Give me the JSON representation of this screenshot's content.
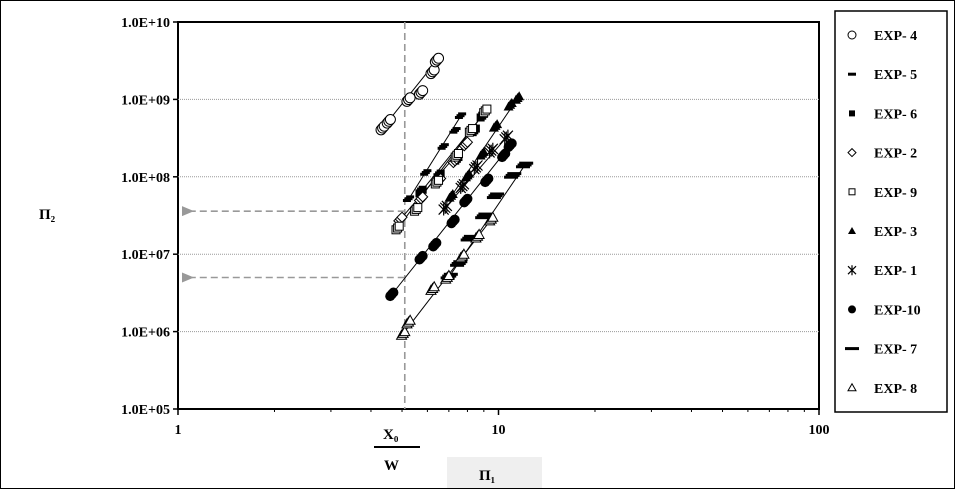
{
  "chart_data": {
    "type": "scatter",
    "x_scale": "log",
    "y_scale": "log",
    "xlim": [
      1,
      100
    ],
    "ylim": [
      100000,
      10000000000
    ],
    "x_ticks": [
      {
        "value": 1,
        "label": "1"
      },
      {
        "value": 10,
        "label": "10"
      },
      {
        "value": 100,
        "label": "100"
      }
    ],
    "y_ticks": [
      {
        "value": 100000,
        "label": "1.0E+05"
      },
      {
        "value": 1000000,
        "label": "1.0E+06"
      },
      {
        "value": 10000000,
        "label": "1.0E+07"
      },
      {
        "value": 100000000,
        "label": "1.0E+08"
      },
      {
        "value": 1000000000,
        "label": "1.0E+09"
      },
      {
        "value": 10000000000,
        "label": "1.0E+10"
      }
    ],
    "ylabel": "Π₂",
    "xlabel": "Π₁",
    "annotation": {
      "numerator": "X₀",
      "denominator": "W"
    },
    "grid": true,
    "legend_position": "right",
    "series": [
      {
        "name": "EXP- 4",
        "marker": "circle-open",
        "points": [
          [
            4.4,
            450000000
          ],
          [
            4.6,
            550000000
          ],
          [
            5.3,
            1050000000
          ],
          [
            5.8,
            1300000000
          ],
          [
            6.3,
            2400000000
          ],
          [
            6.5,
            3400000000
          ]
        ]
      },
      {
        "name": "EXP- 5",
        "marker": "dash",
        "points": [
          [
            5.3,
            55000000
          ],
          [
            6.0,
            120000000
          ],
          [
            6.8,
            260000000
          ],
          [
            7.4,
            420000000
          ],
          [
            7.7,
            650000000
          ]
        ]
      },
      {
        "name": "EXP- 6",
        "marker": "square-filled",
        "points": [
          [
            5.8,
            68000000
          ],
          [
            6.6,
            110000000
          ],
          [
            7.5,
            180000000
          ],
          [
            8.5,
            420000000
          ],
          [
            9.0,
            650000000
          ]
        ]
      },
      {
        "name": "EXP- 2",
        "marker": "diamond-open",
        "points": [
          [
            5.0,
            30000000
          ],
          [
            5.8,
            55000000
          ],
          [
            6.6,
            95000000
          ],
          [
            7.4,
            170000000
          ],
          [
            8.0,
            280000000
          ]
        ]
      },
      {
        "name": "EXP- 9",
        "marker": "square-open",
        "points": [
          [
            4.9,
            23000000
          ],
          [
            5.6,
            40000000
          ],
          [
            6.5,
            90000000
          ],
          [
            7.5,
            200000000
          ],
          [
            8.3,
            420000000
          ],
          [
            9.2,
            750000000
          ]
        ]
      },
      {
        "name": "EXP- 3",
        "marker": "triangle-filled",
        "points": [
          [
            7.2,
            60000000
          ],
          [
            8.1,
            110000000
          ],
          [
            9.0,
            210000000
          ],
          [
            9.9,
            480000000
          ],
          [
            11.0,
            900000000
          ],
          [
            11.6,
            1100000000
          ]
        ]
      },
      {
        "name": "EXP- 1",
        "marker": "asterisk",
        "points": [
          [
            6.9,
            42000000
          ],
          [
            7.8,
            80000000
          ],
          [
            8.6,
            140000000
          ],
          [
            9.6,
            230000000
          ],
          [
            10.7,
            340000000
          ]
        ]
      },
      {
        "name": "EXP-10",
        "marker": "circle-filled",
        "points": [
          [
            4.7,
            3200000
          ],
          [
            5.8,
            9500000
          ],
          [
            6.4,
            14000000
          ],
          [
            7.3,
            28000000
          ],
          [
            8.0,
            52000000
          ],
          [
            9.3,
            95000000
          ],
          [
            10.5,
            200000000
          ],
          [
            11.0,
            270000000
          ]
        ]
      },
      {
        "name": "EXP- 7",
        "marker": "bar",
        "points": [
          [
            7.1,
            5500000
          ],
          [
            7.6,
            8000000
          ],
          [
            8.2,
            17000000
          ],
          [
            9.1,
            33000000
          ],
          [
            9.9,
            60000000
          ],
          [
            11.2,
            110000000
          ],
          [
            12.2,
            150000000
          ]
        ]
      },
      {
        "name": "EXP- 8",
        "marker": "triangle-open",
        "points": [
          [
            5.1,
            1000000
          ],
          [
            5.3,
            1400000
          ],
          [
            6.3,
            3800000
          ],
          [
            7.0,
            5300000
          ],
          [
            7.8,
            10000000
          ],
          [
            8.7,
            18000000
          ],
          [
            9.6,
            30000000
          ]
        ]
      }
    ],
    "reference_lines": [
      {
        "x": 5.1
      },
      {
        "x_from": 5.1,
        "y": 36000000
      },
      {
        "x_from": 5.1,
        "y": 5000000
      }
    ]
  }
}
